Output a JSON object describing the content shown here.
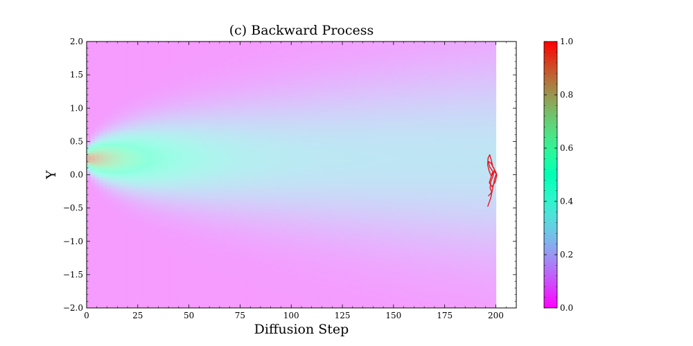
{
  "chart_data": {
    "type": "heatmap",
    "title": "(c) Backward Process",
    "xlabel": "Diffusion Step",
    "ylabel": "Y",
    "xlim": [
      0,
      210
    ],
    "ylim": [
      -2.0,
      2.0
    ],
    "data_x_extent": [
      0,
      200
    ],
    "xticks": [
      0,
      25,
      50,
      75,
      100,
      125,
      150,
      175,
      200
    ],
    "xtick_labels": [
      "0",
      "25",
      "50",
      "75",
      "100",
      "125",
      "150",
      "175",
      "200"
    ],
    "yticks": [
      -2.0,
      -1.5,
      -1.0,
      -0.5,
      0.0,
      0.5,
      1.0,
      1.5,
      2.0
    ],
    "ytick_labels": [
      "−2.0",
      "−1.5",
      "−1.0",
      "−0.5",
      "0.0",
      "0.5",
      "1.0",
      "1.5",
      "2.0"
    ],
    "density_center_y": 0.25,
    "colormap": "rainbow",
    "colorbar": {
      "range": [
        0.0,
        1.0
      ],
      "ticks": [
        0.0,
        0.2,
        0.4,
        0.6,
        0.8,
        1.0
      ],
      "tick_labels": [
        "0.0",
        "0.2",
        "0.4",
        "0.6",
        "0.8",
        "1.0"
      ]
    },
    "series": [
      {
        "type": "line",
        "color": "#e8141c",
        "points": [
          [
            196.0,
            -0.48
          ],
          [
            197.5,
            -0.35
          ],
          [
            198.5,
            -0.2
          ],
          [
            199.5,
            -0.05
          ],
          [
            200.3,
            0.02
          ],
          [
            199.0,
            0.1
          ],
          [
            197.5,
            0.18
          ],
          [
            196.3,
            0.2
          ],
          [
            197.0,
            0.12
          ],
          [
            198.5,
            0.05
          ],
          [
            197.5,
            -0.05
          ],
          [
            196.8,
            -0.12
          ],
          [
            198.2,
            -0.18
          ],
          [
            199.8,
            -0.1
          ],
          [
            200.5,
            0.0
          ],
          [
            199.2,
            0.05
          ],
          [
            197.8,
            -0.02
          ],
          [
            196.8,
            0.05
          ],
          [
            196.0,
            0.15
          ],
          [
            196.2,
            0.25
          ],
          [
            197.0,
            0.3
          ],
          [
            197.8,
            0.22
          ],
          [
            198.5,
            0.12
          ],
          [
            199.3,
            0.08
          ],
          [
            198.6,
            -0.02
          ],
          [
            197.6,
            -0.1
          ],
          [
            197.2,
            -0.2
          ],
          [
            198.0,
            -0.26
          ],
          [
            197.0,
            -0.3
          ],
          [
            196.3,
            -0.32
          ]
        ]
      }
    ]
  }
}
